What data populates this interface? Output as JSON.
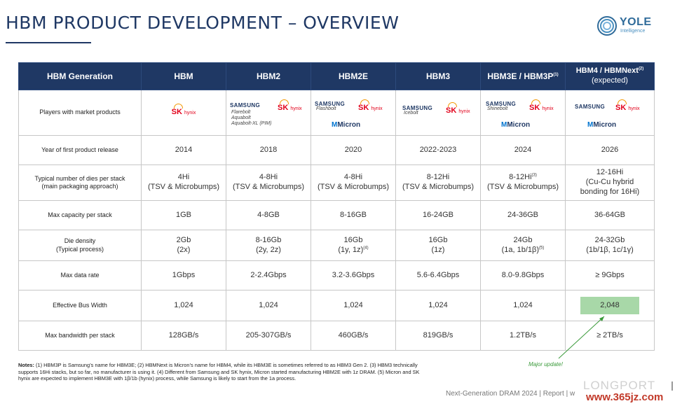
{
  "title": "HBM PRODUCT DEVELOPMENT – OVERVIEW",
  "logo": {
    "name": "YOLE",
    "sub": "Intelligence"
  },
  "header": {
    "col0": "HBM Generation",
    "col1": "HBM",
    "col2": "HBM2",
    "col3": "HBM2E",
    "col4": "HBM3",
    "col5": "HBM3E / HBM3P",
    "col5_sup": "(1)",
    "col6_l1": "HBM4 / HBMNext",
    "col6_sup": "(2)",
    "col6_l2": "(expected)"
  },
  "players": {
    "label": "Players with market products",
    "sk_main": "SK",
    "sk_hy": "hynix",
    "samsung": "SAMSUNG",
    "micron": "Micron",
    "hbm2_samsung_products": [
      "Flarebolt",
      "Aquabolt",
      "Aquabolt-XL (PIM)"
    ],
    "hbm2e_samsung_product": "Flashbolt",
    "hbm3_samsung_product": "Icebolt",
    "hbm3e_samsung_product": "Shinebolt"
  },
  "year": {
    "label": "Year of first product release",
    "values": [
      "2014",
      "2018",
      "2020",
      "2022-2023",
      "2024",
      "2026"
    ]
  },
  "dies": {
    "label_l1": "Typical number of dies per stack",
    "label_l2": "(main packaging approach)",
    "hbm_l1": "4Hi",
    "hbm_l2": "(TSV & Microbumps)",
    "hbm2_l1": "4-8Hi",
    "hbm2_l2": "(TSV & Microbumps)",
    "hbm2e_l1": "4-8Hi",
    "hbm2e_l2": "(TSV & Microbumps)",
    "hbm3_l1": "8-12Hi",
    "hbm3_l2": "(TSV & Microbumps)",
    "hbm3e_l1": "8-12Hi",
    "hbm3e_sup": "(3)",
    "hbm3e_l2": "(TSV & Microbumps)",
    "hbm4_l1": "12-16Hi",
    "hbm4_l2": "(Cu-Cu hybrid",
    "hbm4_l3": "bonding for 16Hi)"
  },
  "capacity": {
    "label": "Max capacity per stack",
    "values": [
      "1GB",
      "4-8GB",
      "8-16GB",
      "16-24GB",
      "24-36GB",
      "36-64GB"
    ]
  },
  "density": {
    "label_l1": "Die density",
    "label_l2": "(Typical process)",
    "hbm_l1": "2Gb",
    "hbm_l2": "(2x)",
    "hbm2_l1": "8-16Gb",
    "hbm2_l2": "(2y, 2z)",
    "hbm2e_l1": "16Gb",
    "hbm2e_l2": "(1y, 1z)",
    "hbm2e_sup": "(4)",
    "hbm3_l1": "16Gb",
    "hbm3_l2": "(1z)",
    "hbm3e_l1": "24Gb",
    "hbm3e_l2": "(1a, 1b/1β)",
    "hbm3e_sup": "(5)",
    "hbm4_l1": "24-32Gb",
    "hbm4_l2": "(1b/1β, 1c/1γ)"
  },
  "datarate": {
    "label": "Max data rate",
    "values": [
      "1Gbps",
      "2-2.4Gbps",
      "3.2-3.6Gbps",
      "5.6-6.4Gbps",
      "8.0-9.8Gbps",
      "≥ 9Gbps"
    ]
  },
  "buswidth": {
    "label": "Effective Bus Width",
    "values": [
      "1,024",
      "1,024",
      "1,024",
      "1,024",
      "1,024",
      "2,048"
    ],
    "highlight_color": "#a8d8a8"
  },
  "bandwidth": {
    "label": "Max bandwidth per stack",
    "values": [
      "128GB/s",
      "205-307GB/s",
      "460GB/s",
      "819GB/s",
      "1.2TB/s",
      "≥ 2TB/s"
    ]
  },
  "annotation": "Major update!",
  "notes": {
    "lead": "Notes:",
    "text": " (1) HBM3P is Samsung’s name for HBM3E; (2) HBMNext is Micron’s name for HBM4, while its HBM3E is sometimes referred to as HBM3 Gen 2. (3) HBM3 technically supports 16Hi stacks, but so far, no manufacturer is using it. (4) Different from Samsung and SK hynix, Micron started manufacturing HBM2E with 1z DRAM. (5) Micron and SK hynix are expected to implement HBM3E with 1β/1b (hynix) process, while Samsung is likely to start from the 1a process."
  },
  "footer": "Next-Generation DRAM 2024 | Report | w",
  "watermark": "www.365jz.com",
  "watermark_bg": "LONGPORT"
}
